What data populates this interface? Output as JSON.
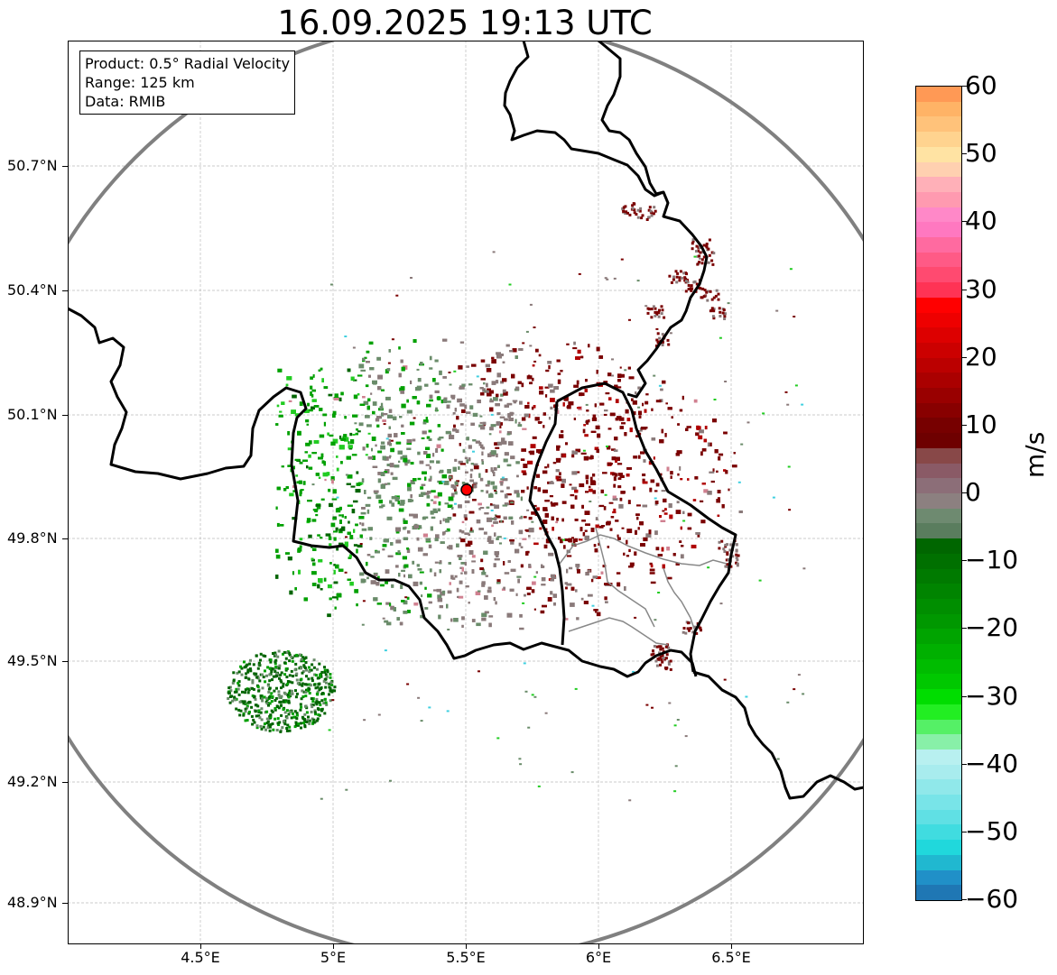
{
  "title": "16.09.2025 19:13 UTC",
  "info": {
    "product": "Product: 0.5° Radial Velocity",
    "range": "Range: 125 km",
    "data": "Data: RMIB"
  },
  "axes": {
    "y_labels": [
      "50.7°N",
      "50.4°N",
      "50.1°N",
      "49.8°N",
      "49.5°N",
      "49.2°N",
      "48.9°N"
    ],
    "x_labels": [
      "4.5°E",
      "5°E",
      "5.5°E",
      "6°E",
      "6.5°E"
    ]
  },
  "colorbar": {
    "unit": "m/s",
    "ticks": [
      "60",
      "50",
      "40",
      "30",
      "20",
      "10",
      "0",
      "−10",
      "−20",
      "−30",
      "−40",
      "−50",
      "−60"
    ],
    "colors": [
      "#ff9955",
      "#ffb366",
      "#ffc27a",
      "#ffd38f",
      "#ffe3a3",
      "#ffd0b0",
      "#ffb0b8",
      "#ff9ab0",
      "#ff88c8",
      "#ff78c0",
      "#ff6aa0",
      "#ff5a86",
      "#ff4a70",
      "#ff3355",
      "#ff0000",
      "#ee0000",
      "#dd0000",
      "#cc0000",
      "#bb0000",
      "#aa0000",
      "#990000",
      "#880000",
      "#770000",
      "#6e0000",
      "#884848",
      "#8a5a66",
      "#8c6e78",
      "#8c8080",
      "#6e8a70",
      "#5a7d5e",
      "#006600",
      "#007000",
      "#007a00",
      "#008400",
      "#008e00",
      "#009800",
      "#00a400",
      "#00b000",
      "#00bc00",
      "#00c800",
      "#00dd00",
      "#22ee22",
      "#55f066",
      "#88f0a8",
      "#b8f0f0",
      "#a8ecee",
      "#90e8ea",
      "#78e4e8",
      "#60e0e4",
      "#40dce0",
      "#20d8dc",
      "#20b8d0",
      "#2090c8",
      "#1f77b4"
    ],
    "palette": {
      "green_dark": "#006400",
      "green": "#00a000",
      "green_light": "#22cc22",
      "grey_green": "#6a8c6a",
      "grey": "#8a7a7a",
      "maroon": "#7a0000",
      "red": "#b00000",
      "pink": "#d08090",
      "cyan": "#40d0e0"
    }
  },
  "radar_site": "Radar site"
}
